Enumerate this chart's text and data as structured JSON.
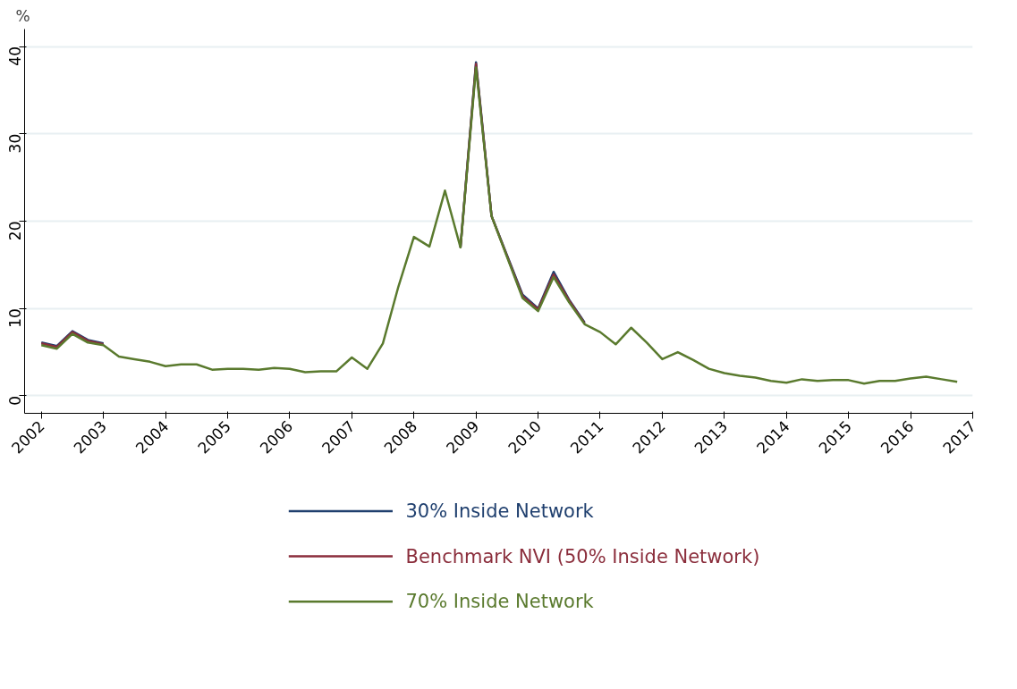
{
  "chart_data": {
    "type": "line",
    "ylabel": "%",
    "x": [
      2002,
      2002.25,
      2002.5,
      2002.75,
      2003,
      2003.25,
      2003.5,
      2003.75,
      2004,
      2004.25,
      2004.5,
      2004.75,
      2005,
      2005.25,
      2005.5,
      2005.75,
      2006,
      2006.25,
      2006.5,
      2006.75,
      2007,
      2007.25,
      2007.5,
      2007.75,
      2008,
      2008.25,
      2008.5,
      2008.75,
      2009,
      2009.25,
      2009.5,
      2009.75,
      2010,
      2010.25,
      2010.5,
      2010.75,
      2011,
      2011.25,
      2011.5,
      2011.75,
      2012,
      2012.25,
      2012.5,
      2012.75,
      2013,
      2013.25,
      2013.5,
      2013.75,
      2014,
      2014.25,
      2014.5,
      2014.75,
      2015,
      2015.25,
      2015.5,
      2015.75,
      2016,
      2016.25,
      2016.5,
      2016.75
    ],
    "series": [
      {
        "name": "30% Inside Network",
        "color": "#1f3f6e",
        "values": [
          6.1,
          5.7,
          7.4,
          6.4,
          6.0,
          null,
          null,
          null,
          null,
          null,
          null,
          null,
          null,
          null,
          null,
          null,
          null,
          null,
          null,
          null,
          null,
          null,
          null,
          null,
          null,
          null,
          null,
          17.0,
          38.2,
          20.6,
          16.1,
          11.6,
          10.0,
          14.2,
          11.0,
          8.4,
          null,
          null,
          null,
          null,
          null,
          null,
          null,
          null,
          null,
          null,
          null,
          null,
          null,
          null,
          null,
          null,
          null,
          null,
          null,
          null,
          null,
          null,
          null,
          null
        ]
      },
      {
        "name": "Benchmark NVI (50% Inside Network)",
        "color": "#8b2e3c",
        "values": [
          6.0,
          5.6,
          7.3,
          6.3,
          5.9,
          null,
          null,
          null,
          null,
          null,
          null,
          null,
          null,
          null,
          null,
          null,
          null,
          null,
          null,
          null,
          null,
          null,
          null,
          null,
          null,
          null,
          null,
          17.0,
          38.0,
          20.6,
          16.0,
          11.4,
          9.9,
          13.9,
          10.9,
          8.3,
          null,
          null,
          null,
          null,
          null,
          null,
          null,
          null,
          null,
          null,
          null,
          null,
          null,
          null,
          null,
          null,
          null,
          null,
          null,
          null,
          null,
          null,
          null,
          null
        ]
      },
      {
        "name": "70% Inside Network",
        "color": "#5a7a2e",
        "values": [
          5.8,
          5.4,
          7.1,
          6.1,
          5.8,
          4.5,
          4.2,
          3.9,
          3.4,
          3.6,
          3.6,
          3.0,
          3.1,
          3.1,
          3.0,
          3.2,
          3.1,
          2.7,
          2.8,
          2.8,
          4.4,
          3.1,
          6.0,
          12.5,
          18.2,
          17.1,
          23.5,
          17.0,
          37.6,
          20.6,
          15.9,
          11.2,
          9.7,
          13.6,
          10.7,
          8.2,
          7.3,
          5.9,
          7.8,
          6.1,
          4.2,
          5.0,
          4.1,
          3.1,
          2.6,
          2.3,
          2.1,
          1.7,
          1.5,
          1.9,
          1.7,
          1.8,
          1.8,
          1.4,
          1.7,
          1.7,
          2.0,
          2.2,
          1.9,
          1.6
        ]
      }
    ],
    "xlim": [
      2001.73,
      2017
    ],
    "xticks": [
      2002,
      2003,
      2004,
      2005,
      2006,
      2007,
      2008,
      2009,
      2010,
      2011,
      2012,
      2013,
      2014,
      2015,
      2016,
      2017
    ],
    "ylim": [
      -2,
      42
    ],
    "yticks": [
      0,
      10,
      20,
      30,
      40
    ],
    "grid": "y",
    "legend": "bottom",
    "marker": "none",
    "line_style": "solid"
  }
}
